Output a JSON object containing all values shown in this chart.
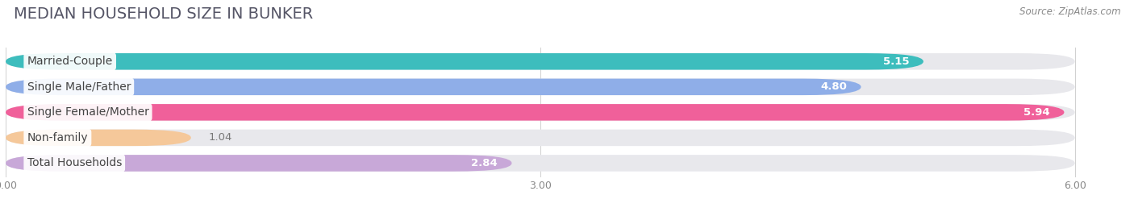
{
  "title": "MEDIAN HOUSEHOLD SIZE IN BUNKER",
  "source": "Source: ZipAtlas.com",
  "categories": [
    "Married-Couple",
    "Single Male/Father",
    "Single Female/Mother",
    "Non-family",
    "Total Households"
  ],
  "values": [
    5.15,
    4.8,
    5.94,
    1.04,
    2.84
  ],
  "bar_colors": [
    "#3dbdbd",
    "#8faee8",
    "#f0609a",
    "#f5c89a",
    "#c8a8d8"
  ],
  "background_color": "#ffffff",
  "bar_bg_color": "#e8e8ec",
  "xlim_max": 6.0,
  "xticks": [
    0.0,
    3.0,
    6.0
  ],
  "xtick_labels": [
    "0.00",
    "3.00",
    "6.00"
  ],
  "title_fontsize": 14,
  "label_fontsize": 10,
  "value_fontsize": 9.5,
  "value_inside_color": "#ffffff",
  "value_outside_color": "#777777",
  "value_inside_threshold": 2.0
}
